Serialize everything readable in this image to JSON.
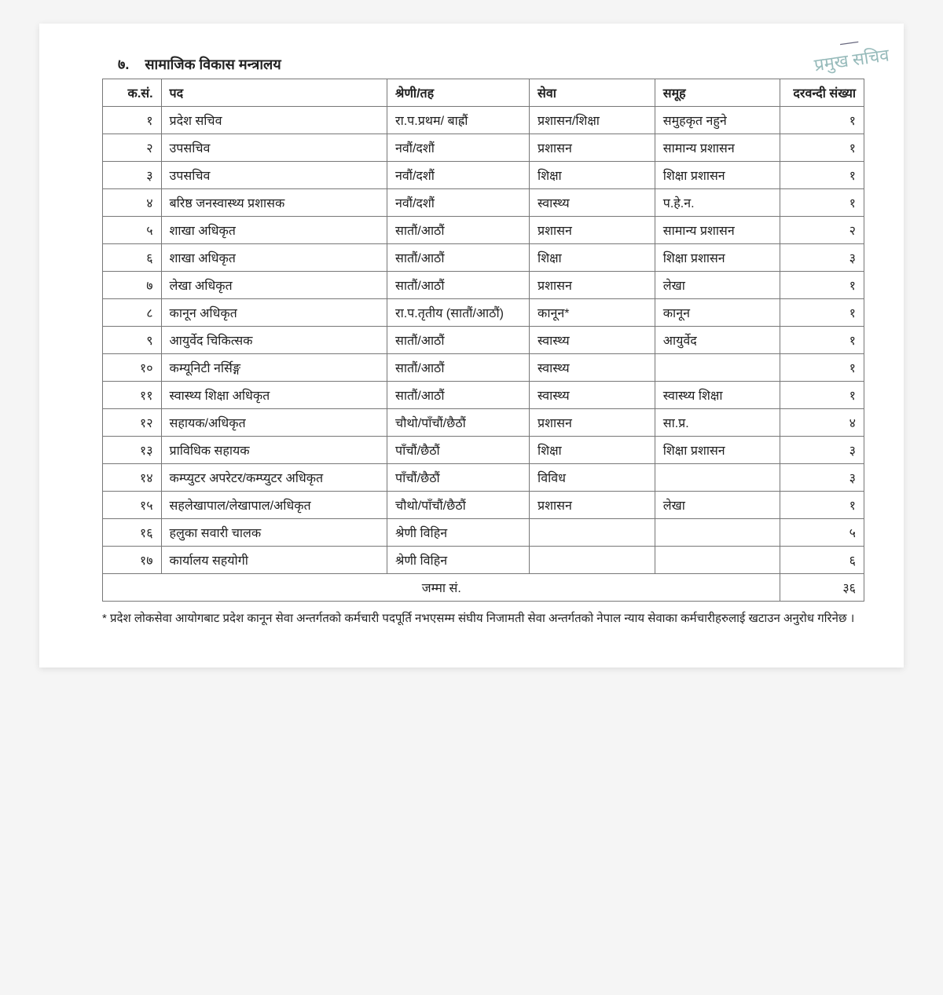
{
  "stamp": {
    "signature": "—",
    "text": "प्रमुख सचिव"
  },
  "section": {
    "number": "७.",
    "title": "सामाजिक विकास मन्त्रालय"
  },
  "table": {
    "headers": {
      "sn": "क.सं.",
      "position": "पद",
      "level": "श्रेणी/तह",
      "service": "सेवा",
      "group": "समूह",
      "count": "दरवन्दी संख्या"
    },
    "rows": [
      {
        "sn": "१",
        "position": "प्रदेश सचिव",
        "level": "रा.प.प्रथम/ बाह्रौं",
        "service": "प्रशासन/शिक्षा",
        "group": "समुहकृत नहुने",
        "count": "१"
      },
      {
        "sn": "२",
        "position": "उपसचिव",
        "level": "नवौं/दशौं",
        "service": "प्रशासन",
        "group": "सामान्य प्रशासन",
        "count": "१"
      },
      {
        "sn": "३",
        "position": "उपसचिव",
        "level": "नवौं/दशौं",
        "service": "शिक्षा",
        "group": "शिक्षा प्रशासन",
        "count": "१"
      },
      {
        "sn": "४",
        "position": "बरिष्ठ जनस्वास्थ्य प्रशासक",
        "level": "नवौं/दशौं",
        "service": "स्वास्थ्य",
        "group": "प.हे.न.",
        "count": "१"
      },
      {
        "sn": "५",
        "position": "शाखा अधिकृत",
        "level": "सातौं/आठौं",
        "service": "प्रशासन",
        "group": "सामान्य प्रशासन",
        "count": "२"
      },
      {
        "sn": "६",
        "position": "शाखा अधिकृत",
        "level": "सातौं/आठौं",
        "service": "शिक्षा",
        "group": "शिक्षा प्रशासन",
        "count": "३"
      },
      {
        "sn": "७",
        "position": "लेखा अधिकृत",
        "level": "सातौं/आठौं",
        "service": "प्रशासन",
        "group": "लेखा",
        "count": "१"
      },
      {
        "sn": "८",
        "position": "कानून अधिकृत",
        "level": "रा.प.तृतीय (सातौं/आठौं)",
        "service": "कानून*",
        "group": "कानून",
        "count": "१"
      },
      {
        "sn": "९",
        "position": "आयुर्वेद चिकित्सक",
        "level": "सातौं/आठौं",
        "service": "स्वास्थ्य",
        "group": "आयुर्वेद",
        "count": "१"
      },
      {
        "sn": "१०",
        "position": "कम्यूनिटी नर्सिङ्ग",
        "level": "सातौं/आठौं",
        "service": "स्वास्थ्य",
        "group": "",
        "count": "१"
      },
      {
        "sn": "११",
        "position": "स्वास्थ्य शिक्षा अधिकृत",
        "level": "सातौं/आठौं",
        "service": "स्वास्थ्य",
        "group": "स्वास्थ्य शिक्षा",
        "count": "१"
      },
      {
        "sn": "१२",
        "position": "सहायक/अधिकृत",
        "level": "चौथो/पाँचौं/छैठौं",
        "service": "प्रशासन",
        "group": "सा.प्र.",
        "count": "४"
      },
      {
        "sn": "१३",
        "position": "प्राविधिक सहायक",
        "level": "पाँचौं/छैठौं",
        "service": "शिक्षा",
        "group": "शिक्षा प्रशासन",
        "count": "३"
      },
      {
        "sn": "१४",
        "position": "कम्प्युटर अपरेटर/कम्प्युटर अधिकृत",
        "level": "पाँचौं/छैठौं",
        "service": "विविध",
        "group": "",
        "count": "३"
      },
      {
        "sn": "१५",
        "position": "सहलेखापाल/लेखापाल/अधिकृत",
        "level": "चौथो/पाँचौं/छैठौं",
        "service": "प्रशासन",
        "group": "लेखा",
        "count": "१"
      },
      {
        "sn": "१६",
        "position": "हलुका सवारी चालक",
        "level": "श्रेणी विहिन",
        "service": "",
        "group": "",
        "count": "५"
      },
      {
        "sn": "१७",
        "position": "कार्यालय सहयोगी",
        "level": "श्रेणी विहिन",
        "service": "",
        "group": "",
        "count": "६"
      }
    ],
    "total": {
      "label": "जम्मा सं.",
      "value": "३६"
    }
  },
  "footnote": "* प्रदेश लोकसेवा आयोगबाट प्रदेश कानून सेवा अन्तर्गतको कर्मचारी पदपूर्ति नभएसम्म संघीय निजामती सेवा अन्तर्गतको नेपाल न्याय सेवाका कर्मचारीहरुलाई खटाउन अनुरोध गरिनेछ ।"
}
